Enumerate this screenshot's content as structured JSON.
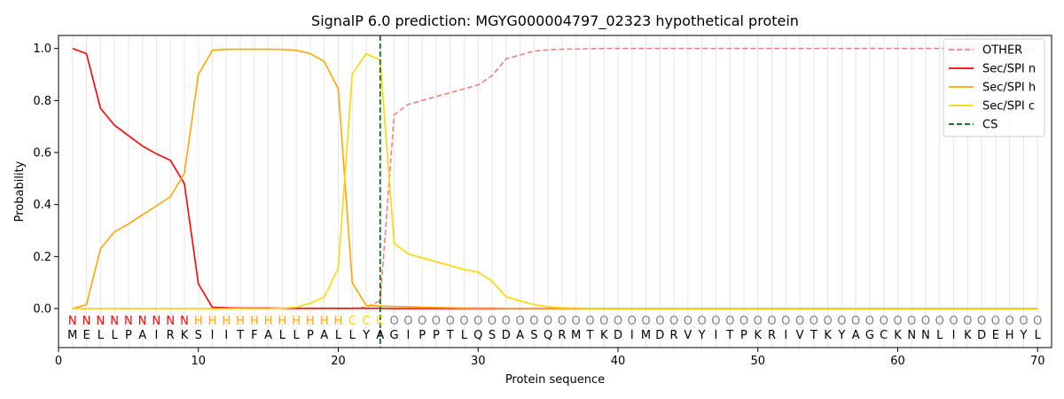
{
  "chart_data": {
    "type": "line",
    "title": "SignalP 6.0 prediction: MGYG000004797_02323 hypothetical protein",
    "xlabel": "Protein sequence",
    "ylabel": "Probability",
    "xlim": [
      0,
      71
    ],
    "ylim": [
      -0.15,
      1.05
    ],
    "xticks": [
      0,
      10,
      20,
      30,
      40,
      50,
      60,
      70
    ],
    "yticks": [
      0.0,
      0.2,
      0.4,
      0.6,
      0.8,
      1.0
    ],
    "grid": "vertical lines at every residue",
    "legend_position": "top-right",
    "sequence": [
      "M",
      "E",
      "L",
      "L",
      "P",
      "A",
      "I",
      "R",
      "K",
      "S",
      "I",
      "I",
      "T",
      "F",
      "A",
      "L",
      "L",
      "P",
      "A",
      "L",
      "L",
      "Y",
      "A",
      "G",
      "I",
      "P",
      "P",
      "T",
      "L",
      "Q",
      "S",
      "D",
      "A",
      "S",
      "Q",
      "R",
      "M",
      "T",
      "K",
      "D",
      "I",
      "M",
      "D",
      "R",
      "V",
      "Y",
      "I",
      "T",
      "P",
      "K",
      "R",
      "I",
      "V",
      "T",
      "K",
      "Y",
      "A",
      "G",
      "C",
      "K",
      "N",
      "N",
      "L",
      "I",
      "K",
      "D",
      "E",
      "H",
      "Y",
      "L"
    ],
    "labels": [
      "N",
      "N",
      "N",
      "N",
      "N",
      "N",
      "N",
      "N",
      "N",
      "H",
      "H",
      "H",
      "H",
      "H",
      "H",
      "H",
      "H",
      "H",
      "H",
      "H",
      "C",
      "C",
      "C",
      "O",
      "O",
      "O",
      "O",
      "O",
      "O",
      "O",
      "O",
      "O",
      "O",
      "O",
      "O",
      "O",
      "O",
      "O",
      "O",
      "O",
      "O",
      "O",
      "O",
      "O",
      "O",
      "O",
      "O",
      "O",
      "O",
      "O",
      "O",
      "O",
      "O",
      "O",
      "O",
      "O",
      "O",
      "O",
      "O",
      "O",
      "O",
      "O",
      "O",
      "O",
      "O",
      "O",
      "O",
      "O",
      "O",
      "O"
    ],
    "label_colors": {
      "N": "#ff0000",
      "H": "#ffa500",
      "C": "#ffd700",
      "O": "#808080"
    },
    "cleavage_site": 23,
    "series": [
      {
        "name": "OTHER",
        "color": "#f08080",
        "dash": true,
        "values": [
          0,
          0,
          0,
          0,
          0,
          0,
          0,
          0,
          0,
          0,
          0,
          0,
          0,
          0,
          0,
          0,
          0,
          0,
          0,
          0,
          0,
          0.005,
          0.03,
          0.745,
          0.785,
          0.8,
          0.815,
          0.83,
          0.845,
          0.86,
          0.895,
          0.96,
          0.975,
          0.99,
          0.995,
          0.997,
          0.998,
          0.999,
          1,
          1,
          1,
          1,
          1,
          1,
          1,
          1,
          1,
          1,
          1,
          1,
          1,
          1,
          1,
          1,
          1,
          1,
          1,
          1,
          1,
          1,
          1,
          1,
          1,
          1,
          1,
          1,
          1,
          1,
          1,
          1
        ]
      },
      {
        "name": "Sec/SPI n",
        "color": "#ff0000",
        "dash": false,
        "values": [
          1.0,
          0.98,
          0.77,
          0.705,
          0.665,
          0.625,
          0.595,
          0.57,
          0.48,
          0.095,
          0.005,
          0.003,
          0.002,
          0.002,
          0.002,
          0.001,
          0.001,
          0.001,
          0.001,
          0.001,
          0.001,
          0.001,
          0.001,
          0,
          0,
          0,
          0,
          0,
          0,
          0,
          0,
          0,
          0,
          0,
          0,
          0,
          0,
          0,
          0,
          0,
          0,
          0,
          0,
          0,
          0,
          0,
          0,
          0,
          0,
          0,
          0,
          0,
          0,
          0,
          0,
          0,
          0,
          0,
          0,
          0,
          0,
          0,
          0,
          0,
          0,
          0,
          0,
          0,
          0,
          0
        ]
      },
      {
        "name": "Sec/SPI h",
        "color": "#ffa500",
        "dash": false,
        "values": [
          0.0,
          0.015,
          0.23,
          0.295,
          0.325,
          0.36,
          0.395,
          0.43,
          0.52,
          0.9,
          0.993,
          0.997,
          0.997,
          0.997,
          0.997,
          0.996,
          0.993,
          0.98,
          0.95,
          0.845,
          0.1,
          0.012,
          0.01,
          0.008,
          0.007,
          0.005,
          0.004,
          0.003,
          0.002,
          0.002,
          0.002,
          0.001,
          0.001,
          0.001,
          0.001,
          0,
          0,
          0,
          0,
          0,
          0,
          0,
          0,
          0,
          0,
          0,
          0,
          0,
          0,
          0,
          0,
          0,
          0,
          0,
          0,
          0,
          0,
          0,
          0,
          0,
          0,
          0,
          0,
          0,
          0,
          0,
          0,
          0,
          0,
          0
        ]
      },
      {
        "name": "Sec/SPI c",
        "color": "#ffd700",
        "dash": false,
        "values": [
          0,
          0,
          0,
          0,
          0,
          0,
          0,
          0,
          0,
          0,
          0,
          0,
          0,
          0,
          0,
          0.001,
          0.005,
          0.02,
          0.045,
          0.155,
          0.9,
          0.98,
          0.955,
          0.25,
          0.21,
          0.195,
          0.18,
          0.165,
          0.15,
          0.14,
          0.105,
          0.045,
          0.03,
          0.015,
          0.007,
          0.003,
          0.002,
          0.001,
          0,
          0,
          0,
          0,
          0,
          0,
          0,
          0,
          0,
          0,
          0,
          0,
          0,
          0,
          0,
          0,
          0,
          0,
          0,
          0,
          0,
          0,
          0,
          0,
          0,
          0,
          0,
          0,
          0,
          0,
          0,
          0
        ]
      }
    ],
    "legend": [
      "OTHER",
      "Sec/SPI n",
      "Sec/SPI h",
      "Sec/SPI c",
      "CS"
    ],
    "cs_color": "#006400"
  }
}
